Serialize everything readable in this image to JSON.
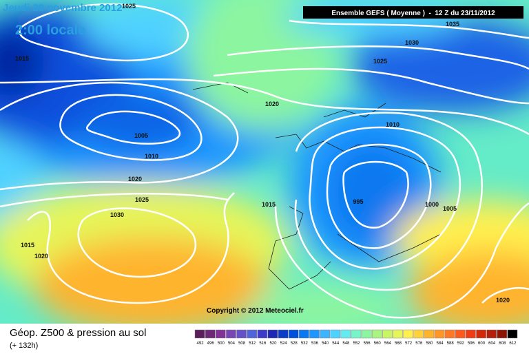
{
  "header": {
    "date": "Jeudi 29 novembre 2012",
    "time": "2:00 locale",
    "run": "Ensemble GEFS ( Moyenne )  -  12 Z du 23/11/2012"
  },
  "isobar_labels": [
    "1025",
    "1015",
    "1005",
    "1010",
    "1020",
    "1025",
    "1030",
    "1015",
    "1020",
    "1020",
    "1015",
    "1035",
    "1030",
    "1025",
    "1010",
    "995",
    "1000",
    "1005",
    "1020"
  ],
  "copyright": "Copyright © 2012 Meteociel.fr",
  "footer": {
    "title": "Géop. Z500 & pression au sol",
    "subtitle": "(+ 132h)"
  },
  "scale": {
    "labels": [
      492,
      496,
      500,
      504,
      508,
      512,
      516,
      520,
      524,
      528,
      532,
      536,
      540,
      544,
      548,
      552,
      556,
      560,
      564,
      568,
      572,
      576,
      580,
      584,
      588,
      592,
      596,
      600,
      604,
      608,
      612
    ],
    "colors": [
      "#5a1e5a",
      "#6e2878",
      "#823296",
      "#7846b4",
      "#6450c8",
      "#5064dc",
      "#3c3cc8",
      "#1e28b4",
      "#0a3cc8",
      "#0050dc",
      "#0a78f0",
      "#1e96ff",
      "#3cb4ff",
      "#50d2ff",
      "#64ebf0",
      "#78f5c8",
      "#8cf5a0",
      "#aaf582",
      "#c8f564",
      "#e6f55a",
      "#fff050",
      "#ffd23c",
      "#ffb42d",
      "#ff9628",
      "#ff7828",
      "#ff5a1e",
      "#f03c14",
      "#d2280a",
      "#b41e0a",
      "#8c1405",
      "#000000"
    ]
  }
}
